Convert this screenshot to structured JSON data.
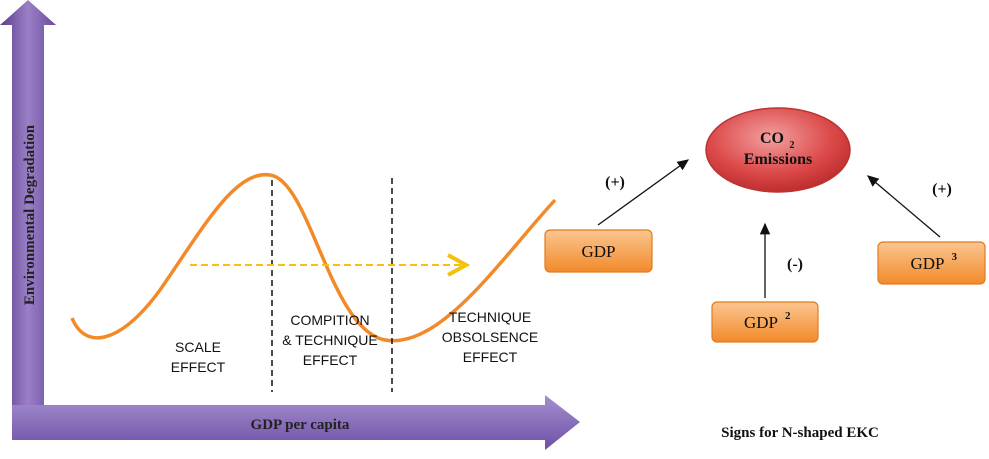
{
  "axes": {
    "y_label": "Environmental Degradation",
    "x_label": "GDP per capita"
  },
  "regions": [
    {
      "lines": [
        "SCALE",
        "EFFECT"
      ]
    },
    {
      "lines": [
        "COMPITION",
        "& TECHNIQUE",
        "EFFECT"
      ]
    },
    {
      "lines": [
        "TECHNIQUE",
        "OBSOLSENCE",
        "EFFECT"
      ]
    }
  ],
  "target": {
    "label": "CO",
    "sub": "2",
    "line2": "Emissions"
  },
  "nodes": [
    {
      "label": "GDP",
      "sign": "(+)"
    },
    {
      "label": "GDP",
      "sup": "2",
      "sign": "(-)"
    },
    {
      "label": "GDP",
      "sup": "3",
      "sign": "(+)"
    }
  ],
  "caption": "Signs for N-shaped EKC"
}
